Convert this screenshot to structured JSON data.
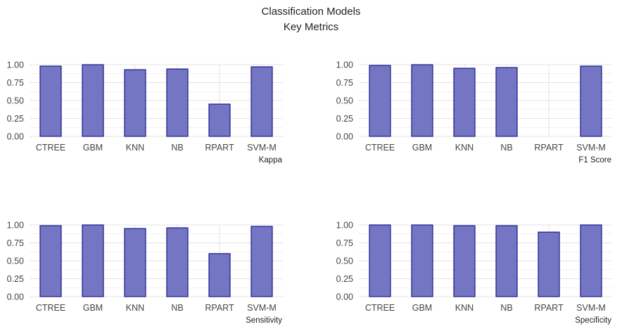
{
  "figure": {
    "title": "Classification Models",
    "subtitle": "Key Metrics"
  },
  "colors": {
    "bar_fill": "#7476c4",
    "bar_stroke": "#1a1a8c",
    "grid": "#e3e3e3"
  },
  "chart_data": [
    {
      "type": "bar",
      "metric": "Kappa",
      "categories": [
        "CTREE",
        "GBM",
        "KNN",
        "NB",
        "RPART",
        "SVM-M"
      ],
      "values": [
        0.98,
        1.0,
        0.93,
        0.94,
        0.45,
        0.97
      ],
      "ylim": [
        0,
        1.0
      ],
      "yticks": [
        "0.00",
        "0.25",
        "0.50",
        "0.75",
        "1.00"
      ],
      "grid": true
    },
    {
      "type": "bar",
      "metric": "F1 Score",
      "categories": [
        "CTREE",
        "GBM",
        "KNN",
        "NB",
        "RPART",
        "SVM-M"
      ],
      "values": [
        0.99,
        1.0,
        0.95,
        0.96,
        null,
        0.98
      ],
      "ylim": [
        0,
        1.0
      ],
      "yticks": [
        "0.00",
        "0.25",
        "0.50",
        "0.75",
        "1.00"
      ],
      "grid": true
    },
    {
      "type": "bar",
      "metric": "Sensitivity",
      "categories": [
        "CTREE",
        "GBM",
        "KNN",
        "NB",
        "RPART",
        "SVM-M"
      ],
      "values": [
        0.99,
        1.0,
        0.95,
        0.96,
        0.6,
        0.98
      ],
      "ylim": [
        0,
        1.0
      ],
      "yticks": [
        "0.00",
        "0.25",
        "0.50",
        "0.75",
        "1.00"
      ],
      "grid": true
    },
    {
      "type": "bar",
      "metric": "Specificity",
      "categories": [
        "CTREE",
        "GBM",
        "KNN",
        "NB",
        "RPART",
        "SVM-M"
      ],
      "values": [
        1.0,
        1.0,
        0.99,
        0.99,
        0.9,
        1.0
      ],
      "ylim": [
        0,
        1.0
      ],
      "yticks": [
        "0.00",
        "0.25",
        "0.50",
        "0.75",
        "1.00"
      ],
      "grid": true
    }
  ]
}
